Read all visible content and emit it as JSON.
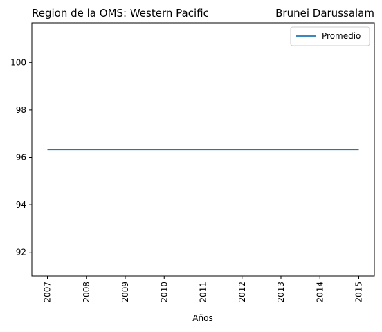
{
  "chart_data": {
    "type": "line",
    "title_left": "Region de la OMS: Western Pacific",
    "title_right": "Brunei Darussalam",
    "xlabel": "Años",
    "ylabel": "",
    "x": [
      "2007",
      "2008",
      "2009",
      "2010",
      "2011",
      "2012",
      "2013",
      "2014",
      "2015"
    ],
    "series": [
      {
        "name": "Promedio",
        "color": "#1f77b4",
        "values": [
          96.33,
          96.33,
          96.33,
          96.33,
          96.33,
          96.33,
          96.33,
          96.33,
          96.33
        ]
      }
    ],
    "ylim": [
      91.0,
      101.67
    ],
    "yticks": [
      "92",
      "94",
      "96",
      "98",
      "100"
    ],
    "legend": "top-right",
    "grid": false
  }
}
